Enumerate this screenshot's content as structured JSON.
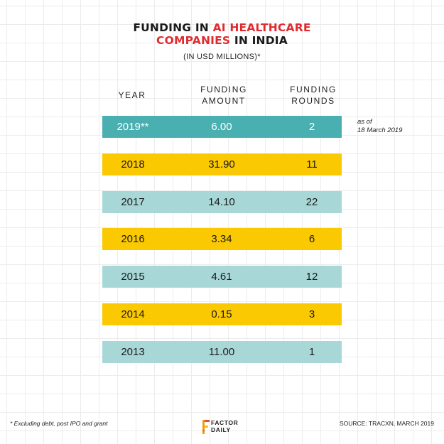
{
  "title": {
    "line1_prefix": "FUNDING IN ",
    "line1_highlight": "AI HEALTHCARE",
    "line2_highlight": "COMPANIES",
    "line2_suffix": " IN INDIA"
  },
  "subtitle": "(IN USD MILLIONS)*",
  "columns": {
    "year": "YEAR",
    "amount_line1": "FUNDING",
    "amount_line2": "AMOUNT",
    "rounds_line1": "FUNDING",
    "rounds_line2": "ROUNDS"
  },
  "note": {
    "line1": "as of",
    "line2": "18 March 2019"
  },
  "footnote": "* Excluding debt, post IPO and grant",
  "source": "SOURCE: TRACXN, MARCH 2019",
  "logo": {
    "line1": "FACTOR",
    "line2": "DAILY"
  },
  "colors": {
    "current": "#4aafb1",
    "light": "#a8d7d7",
    "yellow": "#fbc902",
    "title_red": "#e02b2f"
  },
  "chart_data": {
    "type": "table",
    "columns": [
      "YEAR",
      "FUNDING AMOUNT",
      "FUNDING ROUNDS"
    ],
    "rows": [
      {
        "year": "2019**",
        "amount": "6.00",
        "rounds": "2",
        "color": "current"
      },
      {
        "year": "2018",
        "amount": "31.90",
        "rounds": "11",
        "color": "yellow"
      },
      {
        "year": "2017",
        "amount": "14.10",
        "rounds": "22",
        "color": "light"
      },
      {
        "year": "2016",
        "amount": "3.34",
        "rounds": "6",
        "color": "yellow"
      },
      {
        "year": "2015",
        "amount": "4.61",
        "rounds": "12",
        "color": "light"
      },
      {
        "year": "2014",
        "amount": "0.15",
        "rounds": "3",
        "color": "yellow"
      },
      {
        "year": "2013",
        "amount": "11.00",
        "rounds": "1",
        "color": "light"
      }
    ]
  }
}
